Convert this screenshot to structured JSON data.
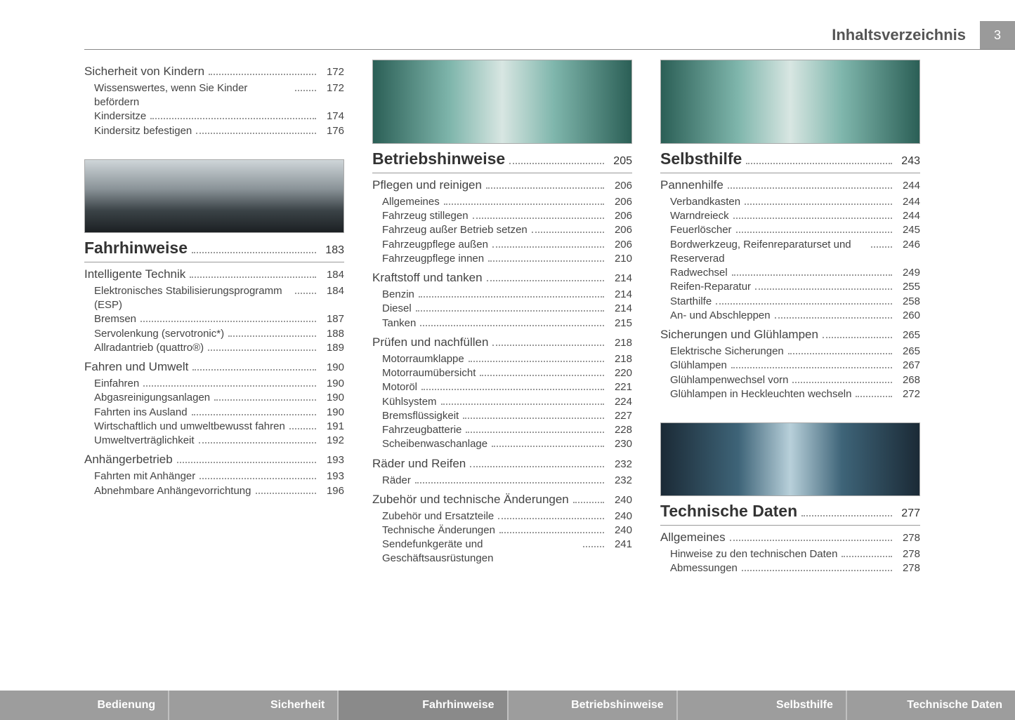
{
  "header": {
    "title": "Inhaltsverzeichnis",
    "page_number": "3"
  },
  "col1": {
    "top": [
      {
        "t": "section",
        "label": "Sicherheit von Kindern",
        "page": "172"
      },
      {
        "t": "sub",
        "label": "Wissenswertes, wenn Sie Kinder befördern",
        "page": "172"
      },
      {
        "t": "sub",
        "label": "Kindersitze",
        "page": "174"
      },
      {
        "t": "sub",
        "label": "Kindersitz befestigen",
        "page": "176"
      }
    ],
    "chapter": {
      "label": "Fahrhinweise",
      "page": "183"
    },
    "entries": [
      {
        "t": "section",
        "label": "Intelligente Technik",
        "page": "184"
      },
      {
        "t": "sub",
        "label": "Elektronisches Stabilisierungsprogramm (ESP)",
        "page": "184"
      },
      {
        "t": "sub",
        "label": "Bremsen",
        "page": "187"
      },
      {
        "t": "sub",
        "label": "Servolenkung (servotronic*)",
        "page": "188"
      },
      {
        "t": "sub",
        "label": "Allradantrieb (quattro®)",
        "page": "189"
      },
      {
        "t": "section",
        "label": "Fahren und Umwelt",
        "page": "190"
      },
      {
        "t": "sub",
        "label": "Einfahren",
        "page": "190"
      },
      {
        "t": "sub",
        "label": "Abgasreinigungsanlagen",
        "page": "190"
      },
      {
        "t": "sub",
        "label": "Fahrten ins Ausland",
        "page": "190"
      },
      {
        "t": "sub",
        "label": "Wirtschaftlich und umweltbewusst fahren",
        "page": "191"
      },
      {
        "t": "sub",
        "label": "Umweltverträglichkeit",
        "page": "192"
      },
      {
        "t": "section",
        "label": "Anhängerbetrieb",
        "page": "193"
      },
      {
        "t": "sub",
        "label": "Fahrten mit Anhänger",
        "page": "193"
      },
      {
        "t": "sub",
        "label": "Abnehmbare Anhängevorrichtung",
        "page": "196"
      }
    ]
  },
  "col2": {
    "chapter": {
      "label": "Betriebshinweise",
      "page": "205"
    },
    "entries": [
      {
        "t": "section",
        "label": "Pflegen und reinigen",
        "page": "206"
      },
      {
        "t": "sub",
        "label": "Allgemeines",
        "page": "206"
      },
      {
        "t": "sub",
        "label": "Fahrzeug stillegen",
        "page": "206"
      },
      {
        "t": "sub",
        "label": "Fahrzeug außer Betrieb setzen",
        "page": "206"
      },
      {
        "t": "sub",
        "label": "Fahrzeugpflege außen",
        "page": "206"
      },
      {
        "t": "sub",
        "label": "Fahrzeugpflege innen",
        "page": "210"
      },
      {
        "t": "section",
        "label": "Kraftstoff und tanken",
        "page": "214"
      },
      {
        "t": "sub",
        "label": "Benzin",
        "page": "214"
      },
      {
        "t": "sub",
        "label": "Diesel",
        "page": "214"
      },
      {
        "t": "sub",
        "label": "Tanken",
        "page": "215"
      },
      {
        "t": "section",
        "label": "Prüfen und nachfüllen",
        "page": "218"
      },
      {
        "t": "sub",
        "label": "Motorraumklappe",
        "page": "218"
      },
      {
        "t": "sub",
        "label": "Motorraumübersicht",
        "page": "220"
      },
      {
        "t": "sub",
        "label": "Motoröl",
        "page": "221"
      },
      {
        "t": "sub",
        "label": "Kühlsystem",
        "page": "224"
      },
      {
        "t": "sub",
        "label": "Bremsflüssigkeit",
        "page": "227"
      },
      {
        "t": "sub",
        "label": "Fahrzeugbatterie",
        "page": "228"
      },
      {
        "t": "sub",
        "label": "Scheibenwaschanlage",
        "page": "230"
      },
      {
        "t": "section",
        "label": "Räder und Reifen",
        "page": "232"
      },
      {
        "t": "sub",
        "label": "Räder",
        "page": "232"
      },
      {
        "t": "section",
        "label": "Zubehör und technische Änderungen",
        "page": "240"
      },
      {
        "t": "sub",
        "label": "Zubehör und Ersatzteile",
        "page": "240"
      },
      {
        "t": "sub",
        "label": "Technische Änderungen",
        "page": "240"
      },
      {
        "t": "sub",
        "label": "Sendefunkgeräte und Geschäftsausrüstungen",
        "page": "241"
      }
    ]
  },
  "col3": {
    "chapter": {
      "label": "Selbsthilfe",
      "page": "243"
    },
    "entries": [
      {
        "t": "section",
        "label": "Pannenhilfe",
        "page": "244"
      },
      {
        "t": "sub",
        "label": "Verbandkasten",
        "page": "244"
      },
      {
        "t": "sub",
        "label": "Warndreieck",
        "page": "244"
      },
      {
        "t": "sub",
        "label": "Feuerlöscher",
        "page": "245"
      },
      {
        "t": "sub",
        "label": "Bordwerkzeug, Reifenreparaturset und Reserverad",
        "page": "246"
      },
      {
        "t": "sub",
        "label": "Radwechsel",
        "page": "249"
      },
      {
        "t": "sub",
        "label": "Reifen-Reparatur",
        "page": "255"
      },
      {
        "t": "sub",
        "label": "Starthilfe",
        "page": "258"
      },
      {
        "t": "sub",
        "label": "An- und Abschleppen",
        "page": "260"
      },
      {
        "t": "section",
        "label": "Sicherungen und Glühlampen",
        "page": "265"
      },
      {
        "t": "sub",
        "label": "Elektrische Sicherungen",
        "page": "265"
      },
      {
        "t": "sub",
        "label": "Glühlampen",
        "page": "267"
      },
      {
        "t": "sub",
        "label": "Glühlampenwechsel vorn",
        "page": "268"
      },
      {
        "t": "sub",
        "label": "Glühlampen in Heckleuchten wechseln",
        "page": "272"
      }
    ],
    "chapter2": {
      "label": "Technische Daten",
      "page": "277"
    },
    "entries2": [
      {
        "t": "section",
        "label": "Allgemeines",
        "page": "278"
      },
      {
        "t": "sub",
        "label": "Hinweise zu den technischen Daten",
        "page": "278"
      },
      {
        "t": "sub",
        "label": "Abmessungen",
        "page": "278"
      }
    ]
  },
  "tabs": [
    "Bedienung",
    "Sicherheit",
    "Fahrhinweise",
    "Betriebshinweise",
    "Selbsthilfe",
    "Technische Daten"
  ]
}
